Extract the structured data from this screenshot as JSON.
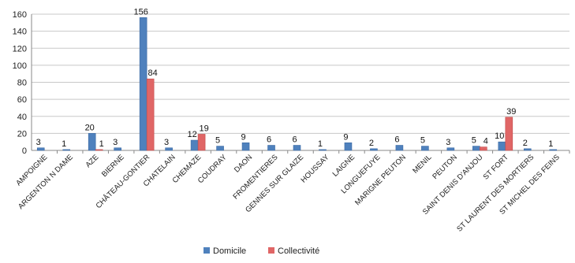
{
  "chart_data": {
    "type": "bar",
    "categories": [
      "AMPOIGNE",
      "ARGENTON N DAME",
      "AZE",
      "BIERNE",
      "CHÂTEAU-GONTIER",
      "CHATELAIN",
      "CHEMAZE",
      "COUDRAY",
      "DAON",
      "FROMENTIERES",
      "GENNES SUR GLAIZE",
      "HOUSSAY",
      "LAIGNE",
      "LONGUEFUYE",
      "MARIGNE PEUTON",
      "MENIL",
      "PEUTON",
      "SAINT DENIS D'ANJOU",
      "ST FORT",
      "ST LAURENT DES MORTIERS",
      "ST MICHEL DES FEINS"
    ],
    "series": [
      {
        "name": "Domicile",
        "color": "#4f81bd",
        "values": [
          3,
          1,
          20,
          3,
          156,
          3,
          12,
          5,
          9,
          6,
          6,
          1,
          9,
          2,
          6,
          5,
          3,
          5,
          10,
          2,
          1
        ]
      },
      {
        "name": "Collectivité",
        "color": "#e06666",
        "values": [
          null,
          null,
          1,
          null,
          84,
          null,
          19,
          null,
          null,
          null,
          null,
          null,
          null,
          null,
          null,
          null,
          null,
          4,
          39,
          null,
          null
        ]
      }
    ],
    "yticks": [
      0,
      20,
      40,
      60,
      80,
      100,
      120,
      140,
      160
    ],
    "ylim": [
      0,
      160
    ],
    "grid": true,
    "legend_position": "bottom-center",
    "title": "",
    "xlabel": "",
    "ylabel": ""
  }
}
